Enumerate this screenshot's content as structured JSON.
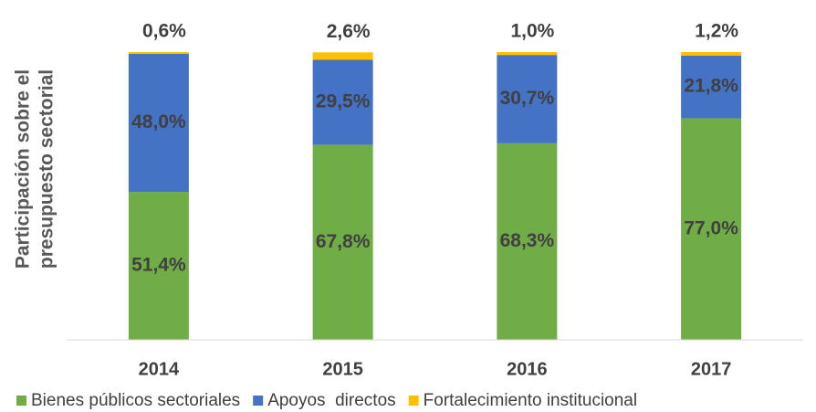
{
  "chart_data": {
    "type": "stacked_bar",
    "ylabel": [
      "Participación sobre el",
      "presupuesto sectorial"
    ],
    "categories": [
      "2014",
      "2015",
      "2016",
      "2017"
    ],
    "ylim": [
      0,
      100
    ],
    "series": [
      {
        "name": "Bienes públicos sectoriales",
        "color": "#70ad47",
        "values": [
          51.4,
          67.8,
          68.3,
          77.0
        ],
        "value_labels": [
          "51,4%",
          "67,8%",
          "68,3%",
          "77,0%"
        ]
      },
      {
        "name": "Apoyos  directos",
        "color": "#4472c4",
        "values": [
          48.0,
          29.5,
          30.7,
          21.8
        ],
        "value_labels": [
          "48,0%",
          "29,5%",
          "30,7%",
          "21,8%"
        ]
      },
      {
        "name": "Fortalecimiento institucional",
        "color": "#ffc000",
        "values": [
          0.6,
          2.6,
          1.0,
          1.2
        ],
        "value_labels": [
          "0,6%",
          "2,6%",
          "1,0%",
          "1,2%"
        ]
      }
    ],
    "legend": "bottom"
  }
}
